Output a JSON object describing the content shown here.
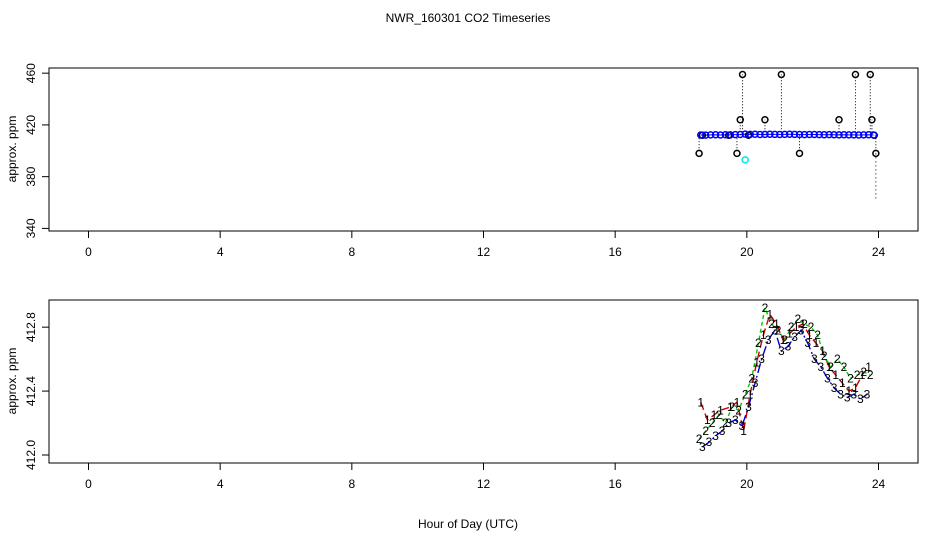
{
  "figure": {
    "title": "NWR_160301  CO2 Timeseries",
    "xlabel": "Hour of Day (UTC)"
  },
  "chart_data": [
    {
      "type": "scatter",
      "title": "NWR_160301  CO2 Timeseries",
      "xlabel": "",
      "ylabel": "approx. ppm",
      "xlim": [
        -1.2,
        25.2
      ],
      "ylim": [
        338,
        464
      ],
      "x_ticks": [
        0,
        4,
        8,
        12,
        16,
        20,
        24
      ],
      "y_ticks": [
        340,
        380,
        420,
        460
      ],
      "grid": false,
      "colors": {
        "black": "#000000",
        "blue": "#0000ff",
        "cyan": "#00e5ee",
        "green": "#00cc00"
      },
      "series": [
        {
          "marker": "circle",
          "color": "#000000",
          "x": [
            18.55,
            18.65,
            19.45,
            19.7,
            19.8,
            19.87,
            20.05,
            20.55,
            21.05,
            21.6,
            22.8,
            23.3,
            23.75,
            23.8,
            23.87,
            23.92
          ],
          "y": [
            398,
            412,
            412,
            398,
            424,
            459,
            412,
            424,
            459,
            398,
            424,
            459,
            459,
            424,
            412,
            398
          ]
        },
        {
          "marker": "circle",
          "color": "#0000ff",
          "x": [
            18.6,
            18.75,
            18.9,
            19.05,
            19.2,
            19.35,
            19.5,
            19.65,
            19.8,
            19.95,
            20.1,
            20.25,
            20.4,
            20.55,
            20.7,
            20.85,
            21.0,
            21.15,
            21.3,
            21.45,
            21.6,
            21.75,
            21.9,
            22.05,
            22.2,
            22.35,
            22.5,
            22.65,
            22.8,
            22.95,
            23.1,
            23.25,
            23.4,
            23.55,
            23.7,
            23.85
          ],
          "y": [
            412.2,
            412.1,
            412.3,
            412.4,
            412.2,
            412.4,
            412.3,
            412.5,
            412.6,
            412.9,
            412.7,
            412.8,
            412.6,
            412.7,
            412.8,
            412.7,
            412.6,
            412.7,
            412.8,
            412.7,
            412.6,
            412.5,
            412.6,
            412.6,
            412.5,
            412.4,
            412.5,
            412.4,
            412.3,
            412.4,
            412.3,
            412.3,
            412.2,
            412.3,
            412.4,
            412.2
          ]
        },
        {
          "marker": "circle",
          "color": "#00e5ee",
          "x": [
            19.95
          ],
          "y": [
            393
          ]
        }
      ]
    },
    {
      "type": "line",
      "title": "",
      "xlabel": "Hour of Day (UTC)",
      "ylabel": "approx. ppm",
      "xlim": [
        -1.2,
        25.2
      ],
      "ylim": [
        411.95,
        412.97
      ],
      "x_ticks": [
        0,
        4,
        8,
        12,
        16,
        20,
        24
      ],
      "y_ticks": [
        412.0,
        412.4,
        412.8
      ],
      "y_tick_labels": [
        "412.0",
        "412.4",
        "412.8"
      ],
      "grid": false,
      "series": [
        {
          "label": "1",
          "color": "#cc0000",
          "dash": "8,4",
          "x": [
            18.6,
            18.8,
            19.0,
            19.2,
            19.5,
            19.7,
            19.9,
            20.1,
            20.3,
            20.5,
            20.7,
            20.9,
            21.1,
            21.3,
            21.5,
            21.7,
            21.9,
            22.1,
            22.3,
            22.5,
            22.7,
            22.9,
            23.1,
            23.3,
            23.5,
            23.7
          ],
          "y": [
            412.33,
            412.22,
            412.25,
            412.28,
            412.3,
            412.33,
            412.15,
            412.38,
            412.58,
            412.75,
            412.88,
            412.82,
            412.72,
            412.76,
            412.8,
            412.82,
            412.75,
            412.7,
            412.65,
            412.55,
            412.5,
            412.45,
            412.4,
            412.42,
            412.5,
            412.55
          ]
        },
        {
          "label": "2",
          "color": "#00cc00",
          "dash": "4,3",
          "x": [
            18.55,
            18.75,
            18.95,
            19.15,
            19.35,
            19.55,
            19.75,
            19.95,
            20.15,
            20.35,
            20.55,
            20.75,
            20.95,
            21.15,
            21.35,
            21.55,
            21.75,
            21.95,
            22.15,
            22.35,
            22.55,
            22.75,
            22.95,
            23.15,
            23.35,
            23.55,
            23.75
          ],
          "y": [
            412.1,
            412.15,
            412.2,
            412.25,
            412.2,
            412.3,
            412.28,
            412.38,
            412.48,
            412.7,
            412.92,
            412.82,
            412.78,
            412.72,
            412.8,
            412.85,
            412.82,
            412.8,
            412.75,
            412.62,
            412.55,
            412.6,
            412.55,
            412.48,
            412.5,
            412.52,
            412.5
          ]
        },
        {
          "label": "3",
          "color": "#0000cc",
          "dash": "10,3,2,3",
          "x": [
            18.65,
            18.85,
            19.05,
            19.25,
            19.45,
            19.65,
            19.85,
            20.05,
            20.25,
            20.45,
            20.65,
            20.85,
            21.05,
            21.25,
            21.45,
            21.65,
            21.85,
            22.05,
            22.25,
            22.45,
            22.65,
            22.85,
            23.05,
            23.25,
            23.45,
            23.65
          ],
          "y": [
            412.05,
            412.08,
            412.12,
            412.15,
            412.2,
            412.22,
            412.18,
            412.3,
            412.45,
            412.6,
            412.72,
            412.78,
            412.65,
            412.68,
            412.74,
            412.78,
            412.7,
            412.6,
            412.55,
            412.48,
            412.42,
            412.38,
            412.36,
            412.38,
            412.35,
            412.38
          ]
        }
      ]
    }
  ]
}
